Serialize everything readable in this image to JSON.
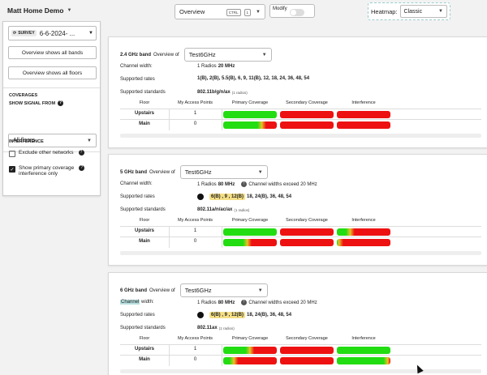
{
  "header": {
    "project": "Matt Home Demo",
    "overview_label": "Overview",
    "shortcut_key1": "CTRL",
    "shortcut_key2": "1",
    "modify_label": "Modify",
    "heatmap_label": "Heatmap:",
    "heatmap_value": "Classic"
  },
  "sidebar": {
    "survey_badge": "SURVEY",
    "survey_name": "6-6-2024- ...",
    "btn_all_bands": "Overview shows all bands",
    "btn_all_floors": "Overview shows all floors",
    "coverages_heading": "COVERAGES",
    "show_signal_heading": "SHOW SIGNAL FROM",
    "floor_select": "All floors",
    "interference_heading": "INTERFERENCE",
    "exclude_label": "Exclude other networks",
    "show_primary_line1": "Show primary coverage",
    "show_primary_line2": "interference only"
  },
  "table_headers": {
    "floor": "Floor",
    "aps": "My Access Points",
    "primary": "Primary Coverage",
    "secondary": "Secondary Coverage",
    "interference": "Interference"
  },
  "bands": [
    {
      "band": "2.4 GHz band",
      "overview_of": "Overview of",
      "network": "Test6GHz",
      "channel_width_label": "Channel width:",
      "channel_radios": "1 Radios",
      "channel_width": "20 MHz",
      "channel_warning": "",
      "rates_label": "Supported rates",
      "rates_hl": "",
      "rates": "1(B), 2(B), 5.5(B), 6, 9, 11(B), 12, 18, 24, 36, 48, 54",
      "standards_label": "Supported standards",
      "standards": "802.11b/g/n/ax",
      "standards_radios": "(1 radios)",
      "rows": [
        {
          "floor": "Upstairs",
          "aps": "1",
          "primary": 1.0,
          "secondary": 0.0,
          "interference": 0.0
        },
        {
          "floor": "Main",
          "aps": "0",
          "primary": 0.72,
          "secondary": 0.0,
          "interference": 0.0
        }
      ]
    },
    {
      "band": "5 GHz band",
      "overview_of": "Overview of",
      "network": "Test6GHz",
      "channel_width_label": "Channel width:",
      "channel_radios": "1 Radios",
      "channel_width": "80 MHz",
      "channel_warning": "Channel widths exceed 20 MHz",
      "rates_label": "Supported rates",
      "rates_hl": "6(B) , 9 , 12(B)",
      "rates": "18, 24(B), 36, 48, 54",
      "standards_label": "Supported standards",
      "standards": "802.11a/n/ac/ax",
      "standards_radios": "(1 radios)",
      "rows": [
        {
          "floor": "Upstairs",
          "aps": "1",
          "primary": 1.0,
          "secondary": 0.0,
          "interference": 0.25
        },
        {
          "floor": "Main",
          "aps": "0",
          "primary": 0.45,
          "secondary": 0.0,
          "interference": 0.04
        }
      ]
    },
    {
      "band": "6 GHz band",
      "overview_of": "Overview of",
      "network": "Test6GHz",
      "channel_width_label_hl": "Channel",
      "channel_width_label": " width:",
      "channel_radios": "1 Radios",
      "channel_width": "80 MHz",
      "channel_warning": "Channel widths exceed 20 MHz",
      "rates_label": "Supported rates",
      "rates_hl": "6(B) , 9 , 12(B)",
      "rates": "18, 24(B), 36, 48, 54",
      "standards_label": "Supported standards",
      "standards": "802.11ax",
      "standards_radios": "(1 radios)",
      "rows": [
        {
          "floor": "Upstairs",
          "aps": "1",
          "primary": 0.5,
          "secondary": 0.0,
          "interference": 1.0
        },
        {
          "floor": "Main",
          "aps": "0",
          "primary": 0.2,
          "secondary": 0.0,
          "interference": 0.95
        }
      ]
    }
  ],
  "colors": {
    "good": "#22dd11",
    "mid": "#e8c326",
    "bad": "#ee1111"
  }
}
